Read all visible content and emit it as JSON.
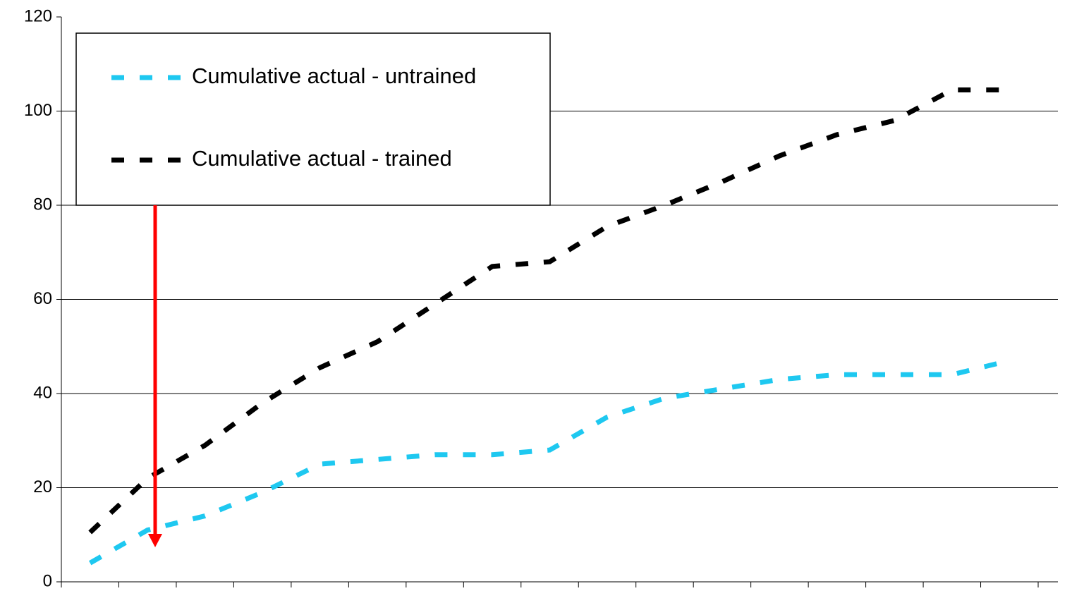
{
  "chart_data": {
    "type": "line",
    "categories": [
      null,
      null,
      null,
      null,
      null,
      null,
      null,
      null,
      null,
      null,
      null,
      null,
      null,
      null,
      null,
      null,
      null
    ],
    "series": [
      {
        "name": "Cumulative actual - untrained",
        "color": "#1ec8f0",
        "values": [
          4,
          11,
          14,
          19,
          25,
          26,
          27,
          27,
          28,
          35,
          39,
          41,
          43,
          44,
          44,
          44,
          47
        ]
      },
      {
        "name": "Cumulative actual - trained",
        "color": "#000000",
        "values": [
          10.5,
          22,
          29,
          38,
          45.5,
          51,
          59,
          67,
          68,
          75.5,
          80,
          85,
          90.5,
          95,
          98,
          104.5,
          104.5
        ]
      }
    ],
    "ylim": [
      0,
      120
    ],
    "yticks": [
      0,
      20,
      40,
      60,
      80,
      100,
      120
    ],
    "grid": true
  }
}
